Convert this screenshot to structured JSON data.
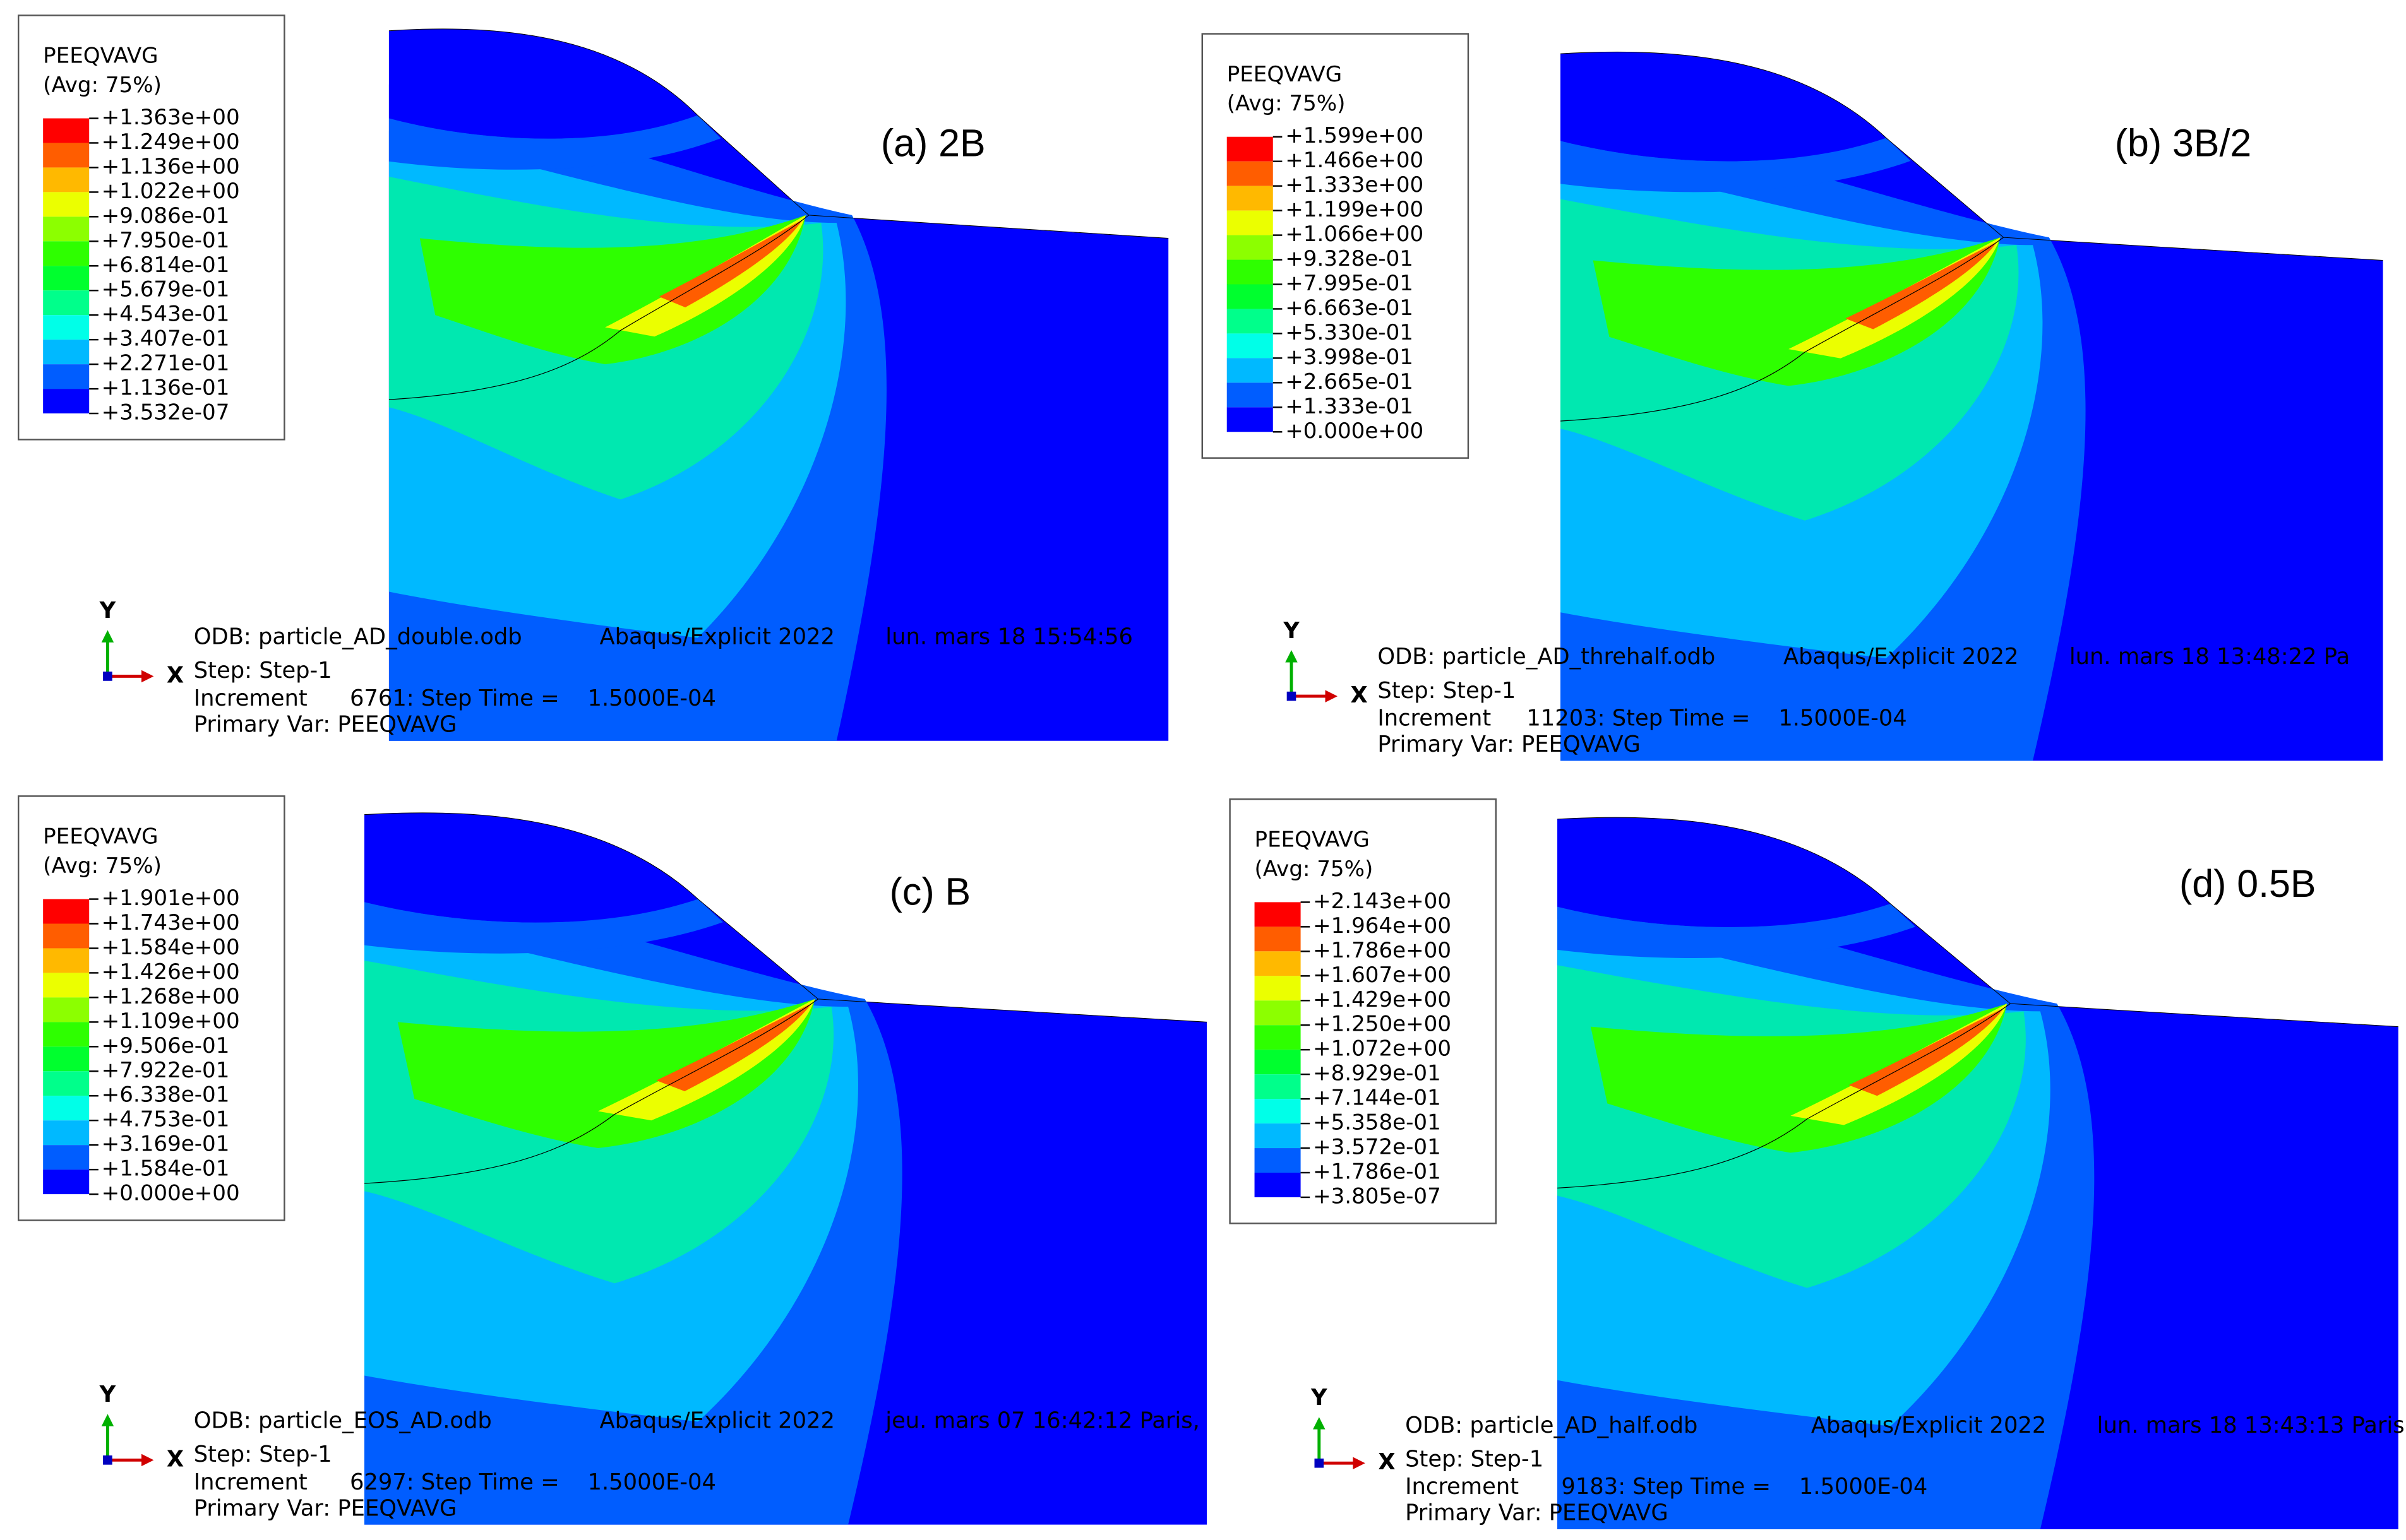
{
  "panels": [
    {
      "label": "(a) 2B",
      "legend": {
        "title": "PEEQVAVG",
        "subtitle": "(Avg: 75%)",
        "values": [
          "+1.363e+00",
          "+1.249e+00",
          "+1.136e+00",
          "+1.022e+00",
          "+9.086e-01",
          "+7.950e-01",
          "+6.814e-01",
          "+5.679e-01",
          "+4.543e-01",
          "+3.407e-01",
          "+2.271e-01",
          "+1.136e-01",
          "+3.532e-07"
        ]
      },
      "axes": {
        "y": "Y",
        "x": "X"
      },
      "info": {
        "odb": "ODB: particle_AD_double.odb",
        "solver": "Abaqus/Explicit 2022",
        "date": "lun. mars 18 15:54:56",
        "step": "Step: Step-1",
        "increment": "Increment      6761: Step Time =    1.5000E-04",
        "primary": "Primary Var: PEEQVAVG"
      }
    },
    {
      "label": "(b) 3B/2",
      "legend": {
        "title": "PEEQVAVG",
        "subtitle": "(Avg: 75%)",
        "values": [
          "+1.599e+00",
          "+1.466e+00",
          "+1.333e+00",
          "+1.199e+00",
          "+1.066e+00",
          "+9.328e-01",
          "+7.995e-01",
          "+6.663e-01",
          "+5.330e-01",
          "+3.998e-01",
          "+2.665e-01",
          "+1.333e-01",
          "+0.000e+00"
        ]
      },
      "axes": {
        "y": "Y",
        "x": "X"
      },
      "info": {
        "odb": "ODB: particle_AD_threhalf.odb",
        "solver": "Abaqus/Explicit 2022",
        "date": "lun. mars 18 13:48:22 Pa",
        "step": "Step: Step-1",
        "increment": "Increment     11203: Step Time =    1.5000E-04",
        "primary": "Primary Var: PEEQVAVG"
      }
    },
    {
      "label": "(c) B",
      "legend": {
        "title": "PEEQVAVG",
        "subtitle": "(Avg: 75%)",
        "values": [
          "+1.901e+00",
          "+1.743e+00",
          "+1.584e+00",
          "+1.426e+00",
          "+1.268e+00",
          "+1.109e+00",
          "+9.506e-01",
          "+7.922e-01",
          "+6.338e-01",
          "+4.753e-01",
          "+3.169e-01",
          "+1.584e-01",
          "+0.000e+00"
        ]
      },
      "axes": {
        "y": "Y",
        "x": "X"
      },
      "info": {
        "odb": "ODB: particle_EOS_AD.odb",
        "solver": "Abaqus/Explicit 2022",
        "date": "jeu. mars 07 16:42:12 Paris,",
        "step": "Step: Step-1",
        "increment": "Increment      6297: Step Time =    1.5000E-04",
        "primary": "Primary Var: PEEQVAVG"
      }
    },
    {
      "label": "(d) 0.5B",
      "legend": {
        "title": "PEEQVAVG",
        "subtitle": "(Avg: 75%)",
        "values": [
          "+2.143e+00",
          "+1.964e+00",
          "+1.786e+00",
          "+1.607e+00",
          "+1.429e+00",
          "+1.250e+00",
          "+1.072e+00",
          "+8.929e-01",
          "+7.144e-01",
          "+5.358e-01",
          "+3.572e-01",
          "+1.786e-01",
          "+3.805e-07"
        ]
      },
      "axes": {
        "y": "Y",
        "x": "X"
      },
      "info": {
        "odb": "ODB: particle_AD_half.odb",
        "solver": "Abaqus/Explicit 2022",
        "date": "lun. mars 18 13:43:13 Paris",
        "step": "Step: Step-1",
        "increment": "Increment      9183: Step Time =    1.5000E-04",
        "primary": "Primary Var: PEEQVAVG"
      }
    }
  ]
}
